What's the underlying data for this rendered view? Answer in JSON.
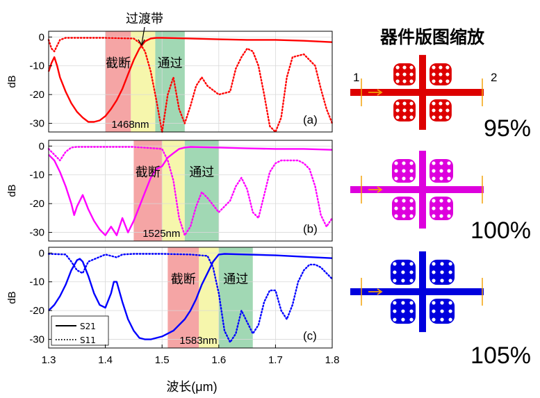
{
  "chart_data": [
    {
      "type": "line",
      "panel_label": "(a)",
      "ylabel": "dB",
      "xlim": [
        1.3,
        1.8
      ],
      "ylim": [
        -33,
        2
      ],
      "yticks": [
        0,
        -10,
        -20,
        -30
      ],
      "color": "#ff0000",
      "band_stop_label": "截断",
      "band_pass_label": "通过",
      "transition_label": "过渡带",
      "cutoff_label": "1468nm",
      "bands": {
        "stop": [
          1.4,
          1.445
        ],
        "transition": [
          1.445,
          1.488
        ],
        "pass": [
          1.488,
          1.54
        ]
      },
      "series": [
        {
          "name": "S21",
          "style": "solid",
          "x": [
            1.3,
            1.305,
            1.31,
            1.315,
            1.32,
            1.33,
            1.34,
            1.35,
            1.36,
            1.37,
            1.38,
            1.39,
            1.4,
            1.41,
            1.42,
            1.43,
            1.44,
            1.45,
            1.46,
            1.47,
            1.48,
            1.49,
            1.5,
            1.55,
            1.6,
            1.65,
            1.7,
            1.75,
            1.8
          ],
          "y": [
            -12,
            -9,
            -7,
            -10,
            -14,
            -19,
            -23,
            -26,
            -28,
            -29.5,
            -29.5,
            -29,
            -27.5,
            -25,
            -22,
            -18,
            -13,
            -8,
            -4,
            -1.5,
            -0.5,
            -0.3,
            -0.3,
            -0.5,
            -0.8,
            -1,
            -1,
            -1.3,
            -1.8
          ]
        },
        {
          "name": "S11",
          "style": "dotted",
          "x": [
            1.3,
            1.305,
            1.31,
            1.315,
            1.32,
            1.33,
            1.35,
            1.4,
            1.45,
            1.46,
            1.47,
            1.48,
            1.49,
            1.5,
            1.51,
            1.52,
            1.53,
            1.54,
            1.55,
            1.56,
            1.57,
            1.58,
            1.6,
            1.62,
            1.63,
            1.64,
            1.65,
            1.66,
            1.67,
            1.68,
            1.69,
            1.7,
            1.71,
            1.72,
            1.73,
            1.75,
            1.77,
            1.78,
            1.79,
            1.8
          ],
          "y": [
            -1,
            -4,
            -5,
            -3,
            -1,
            -0.3,
            -0.3,
            -0.3,
            -0.5,
            -2,
            -5,
            -12,
            -22,
            -33,
            -20,
            -14,
            -25,
            -30,
            -24,
            -17,
            -14,
            -17,
            -20,
            -19,
            -11,
            -7,
            -4,
            -5,
            -10,
            -20,
            -31,
            -33,
            -28,
            -14,
            -7,
            -6,
            -10,
            -18,
            -25,
            -30
          ]
        }
      ]
    },
    {
      "type": "line",
      "panel_label": "(b)",
      "ylabel": "dB",
      "xlim": [
        1.3,
        1.8
      ],
      "ylim": [
        -33,
        2
      ],
      "yticks": [
        0,
        -10,
        -20,
        -30
      ],
      "color": "#ff00ff",
      "band_stop_label": "截断",
      "band_pass_label": "通过",
      "cutoff_label": "1525nm",
      "bands": {
        "stop": [
          1.45,
          1.5
        ],
        "transition": [
          1.5,
          1.54
        ],
        "pass": [
          1.54,
          1.6
        ]
      },
      "series": [
        {
          "name": "S21",
          "style": "solid",
          "x": [
            1.3,
            1.31,
            1.32,
            1.33,
            1.34,
            1.345,
            1.35,
            1.36,
            1.37,
            1.38,
            1.39,
            1.4,
            1.41,
            1.42,
            1.43,
            1.44,
            1.45,
            1.46,
            1.47,
            1.48,
            1.49,
            1.5,
            1.51,
            1.52,
            1.53,
            1.54,
            1.55,
            1.6,
            1.65,
            1.7,
            1.75,
            1.8
          ],
          "y": [
            -3,
            -5,
            -9,
            -14,
            -20,
            -24,
            -21,
            -17,
            -22,
            -26,
            -29,
            -31,
            -28,
            -31,
            -25,
            -30,
            -26,
            -21,
            -16,
            -11,
            -8,
            -7,
            -4,
            -2.5,
            -1,
            -0.5,
            -0.3,
            -0.5,
            -0.8,
            -1,
            -1,
            -1.3
          ]
        },
        {
          "name": "S11",
          "style": "dotted",
          "x": [
            1.3,
            1.31,
            1.32,
            1.33,
            1.34,
            1.35,
            1.36,
            1.4,
            1.45,
            1.5,
            1.51,
            1.52,
            1.53,
            1.54,
            1.55,
            1.56,
            1.57,
            1.58,
            1.6,
            1.62,
            1.63,
            1.64,
            1.65,
            1.66,
            1.67,
            1.68,
            1.69,
            1.7,
            1.71,
            1.72,
            1.73,
            1.74,
            1.75,
            1.76,
            1.77,
            1.78,
            1.79,
            1.8
          ],
          "y": [
            -1,
            -3,
            -5,
            -2,
            -0.5,
            -0.3,
            -0.3,
            -0.3,
            -0.3,
            -1,
            -5,
            -12,
            -25,
            -31,
            -28,
            -21,
            -16,
            -18,
            -23,
            -19,
            -14,
            -11,
            -15,
            -23,
            -25,
            -17,
            -9,
            -6,
            -5,
            -5,
            -5,
            -5,
            -6,
            -8,
            -14,
            -24,
            -28,
            -25
          ]
        }
      ]
    },
    {
      "type": "line",
      "panel_label": "(c)",
      "ylabel": "dB",
      "xlim": [
        1.3,
        1.8
      ],
      "ylim": [
        -33,
        2
      ],
      "yticks": [
        0,
        -10,
        -20,
        -30
      ],
      "color": "#0000ff",
      "band_stop_label": "截断",
      "band_pass_label": "通过",
      "cutoff_label": "1583nm",
      "legend": {
        "entries": [
          "S21",
          "S11"
        ],
        "placement": "lower-left"
      },
      "bands": {
        "stop": [
          1.51,
          1.565
        ],
        "transition": [
          1.565,
          1.6
        ],
        "pass": [
          1.6,
          1.66
        ]
      },
      "series": [
        {
          "name": "S21",
          "style": "solid",
          "x": [
            1.3,
            1.31,
            1.32,
            1.33,
            1.34,
            1.35,
            1.355,
            1.36,
            1.37,
            1.38,
            1.39,
            1.4,
            1.41,
            1.415,
            1.42,
            1.43,
            1.44,
            1.45,
            1.46,
            1.47,
            1.48,
            1.5,
            1.52,
            1.54,
            1.55,
            1.56,
            1.57,
            1.58,
            1.59,
            1.6,
            1.61,
            1.65,
            1.7,
            1.75,
            1.8
          ],
          "y": [
            -20,
            -18,
            -15,
            -11,
            -6,
            -2.5,
            -2,
            -3,
            -8,
            -14,
            -18,
            -19,
            -14,
            -10,
            -10,
            -17,
            -23,
            -27,
            -29.5,
            -30,
            -30,
            -29,
            -27,
            -23,
            -20,
            -16,
            -11,
            -7,
            -3,
            -0.5,
            -0.3,
            -0.5,
            -0.8,
            -1.3,
            -1.8
          ]
        },
        {
          "name": "S11",
          "style": "dotted",
          "x": [
            1.3,
            1.33,
            1.34,
            1.35,
            1.36,
            1.37,
            1.4,
            1.41,
            1.42,
            1.43,
            1.45,
            1.5,
            1.55,
            1.58,
            1.59,
            1.6,
            1.61,
            1.62,
            1.63,
            1.64,
            1.65,
            1.66,
            1.67,
            1.68,
            1.69,
            1.7,
            1.71,
            1.72,
            1.73,
            1.74,
            1.75,
            1.76,
            1.77,
            1.78,
            1.79,
            1.8
          ],
          "y": [
            -0.3,
            -0.5,
            -3,
            -6,
            -7,
            -3,
            -0.5,
            -1,
            -1.5,
            -0.5,
            -0.3,
            -0.3,
            -0.5,
            -1,
            -5,
            -14,
            -27,
            -31,
            -28,
            -20,
            -24,
            -28,
            -25,
            -17,
            -13,
            -13,
            -20,
            -23,
            -18,
            -10,
            -6,
            -4,
            -4,
            -5,
            -7,
            -9
          ]
        }
      ]
    }
  ],
  "xaxis": {
    "label": "波长(μm)",
    "ticks": [
      "1.3",
      "1.4",
      "1.5",
      "1.6",
      "1.7",
      "1.8"
    ],
    "values": [
      1.3,
      1.4,
      1.5,
      1.6,
      1.7,
      1.8
    ]
  },
  "layout_side": {
    "title": "器件版图缩放",
    "scales": [
      "95%",
      "100%",
      "105%"
    ],
    "port_labels": [
      "1",
      "2"
    ],
    "colors": [
      "#dd0000",
      "#dd00dd",
      "#0000dd"
    ]
  }
}
